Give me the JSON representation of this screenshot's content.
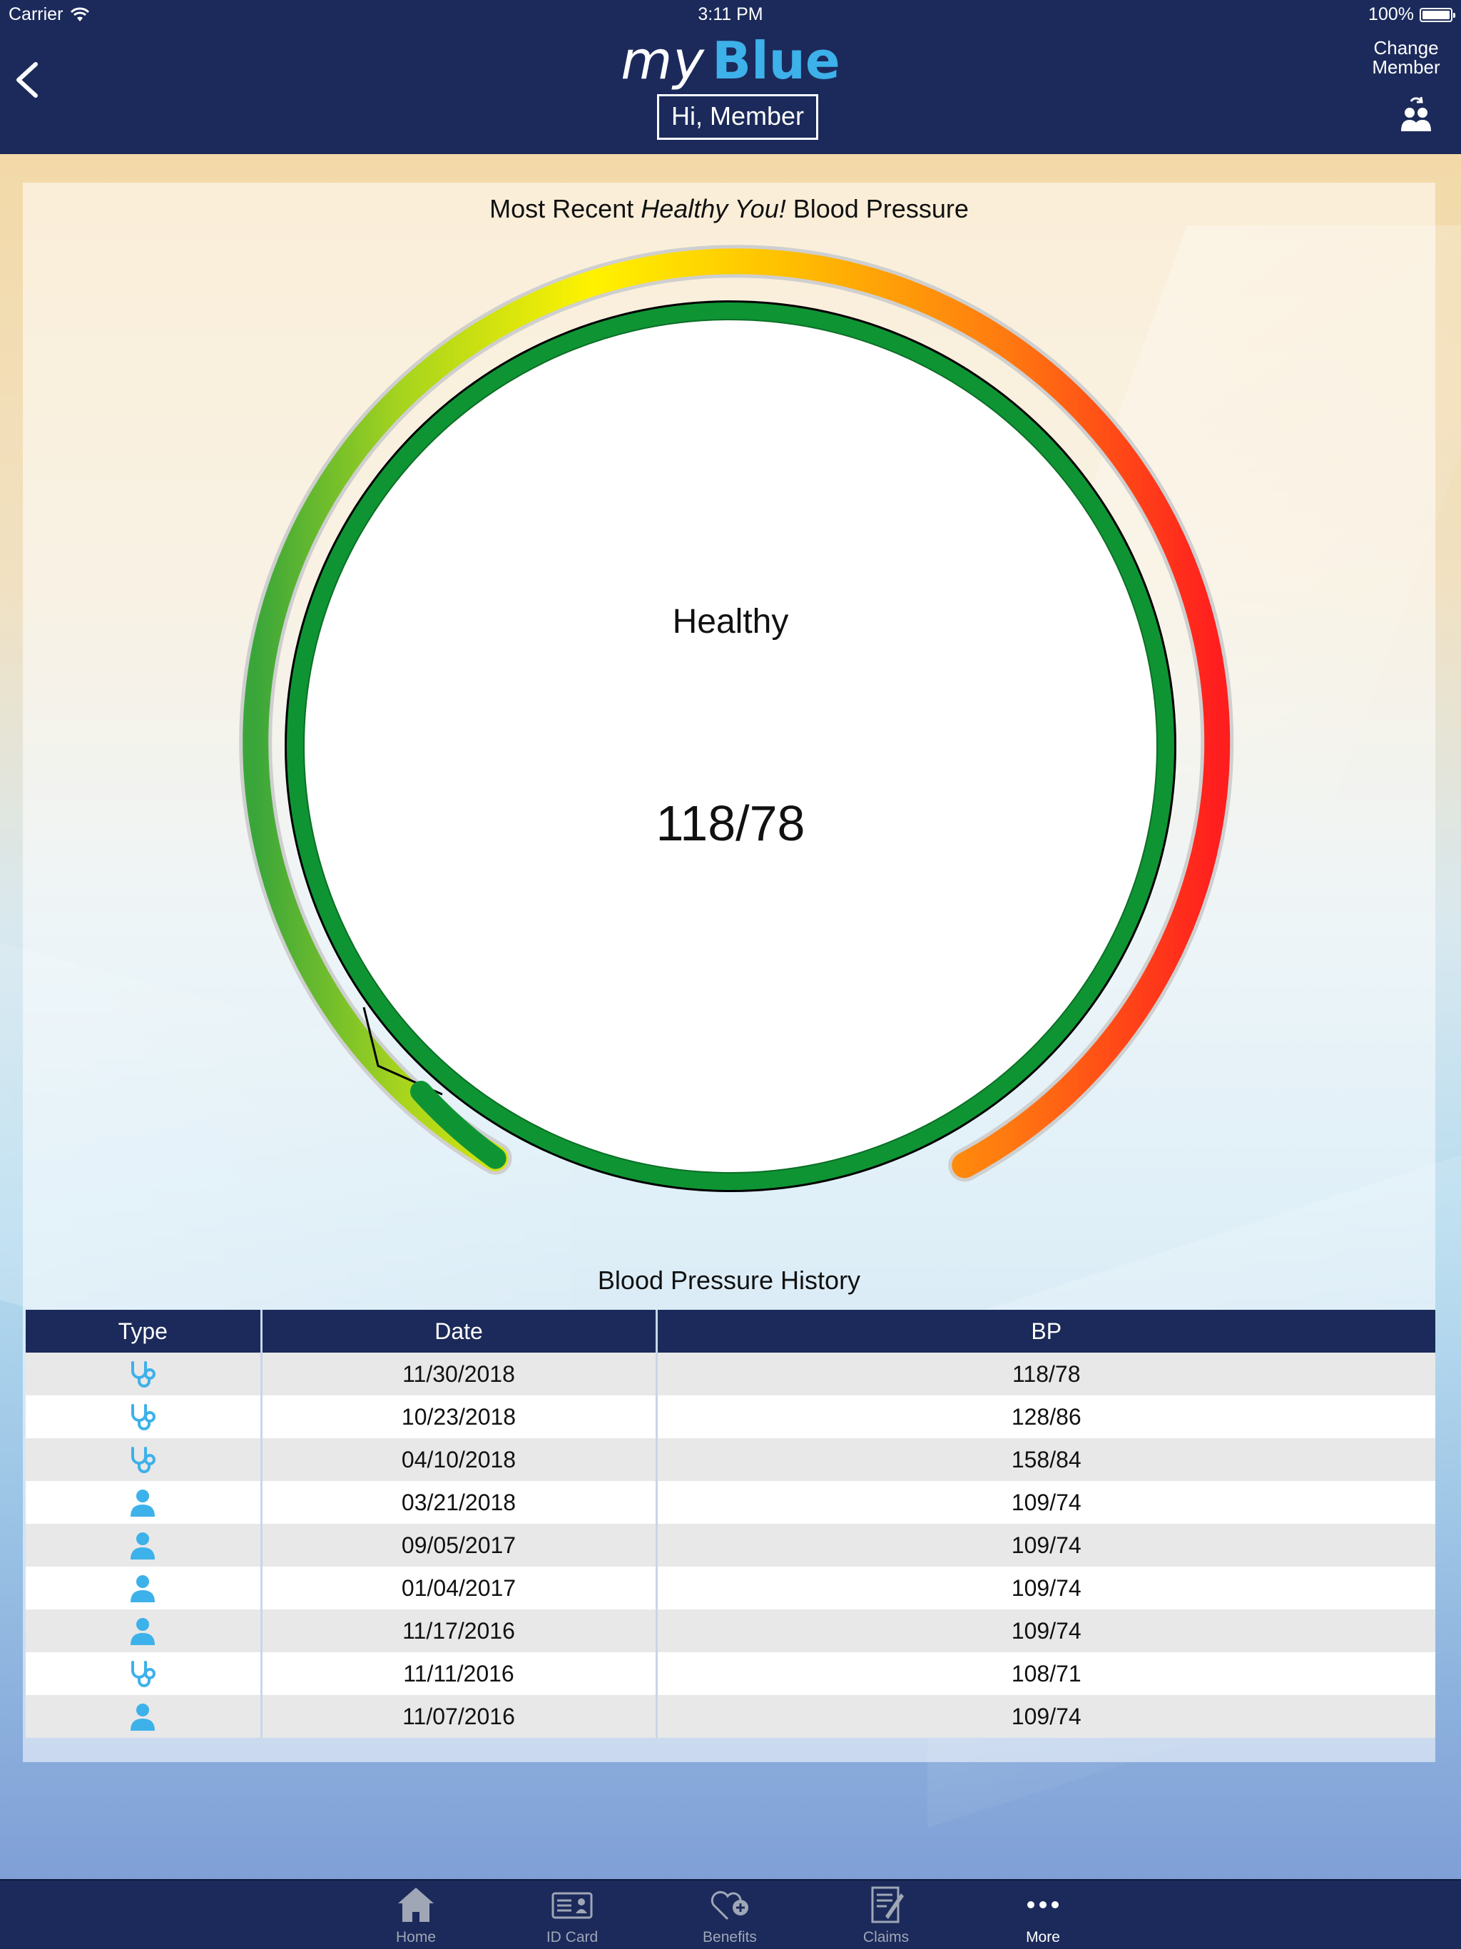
{
  "status_bar": {
    "carrier": "Carrier",
    "time": "3:11 PM",
    "battery": "100%"
  },
  "header": {
    "brand_my": "my",
    "brand_blue": "Blue",
    "greeting": "Hi, Member",
    "change_member_line1": "Change",
    "change_member_line2": "Member"
  },
  "card": {
    "title_prefix": "Most Recent ",
    "title_italic": "Healthy You!",
    "title_suffix": " Blood Pressure"
  },
  "gauge": {
    "status": "Healthy",
    "value": "118/78",
    "ring_color": "#0f9434",
    "gradient_colors": [
      "#3aa63a",
      "#c8e21a",
      "#fff200",
      "#ffc000",
      "#ff7a10",
      "#ff1e1e"
    ]
  },
  "history": {
    "title": "Blood Pressure History",
    "columns": [
      "Type",
      "Date",
      "BP"
    ],
    "rows": [
      {
        "type": "stethoscope-icon",
        "date": "11/30/2018",
        "bp": "118/78"
      },
      {
        "type": "stethoscope-icon",
        "date": "10/23/2018",
        "bp": "128/86"
      },
      {
        "type": "stethoscope-icon",
        "date": "04/10/2018",
        "bp": "158/84"
      },
      {
        "type": "person-icon",
        "date": "03/21/2018",
        "bp": "109/74"
      },
      {
        "type": "person-icon",
        "date": "09/05/2017",
        "bp": "109/74"
      },
      {
        "type": "person-icon",
        "date": "01/04/2017",
        "bp": "109/74"
      },
      {
        "type": "person-icon",
        "date": "11/17/2016",
        "bp": "109/74"
      },
      {
        "type": "stethoscope-icon",
        "date": "11/11/2016",
        "bp": "108/71"
      },
      {
        "type": "person-icon",
        "date": "11/07/2016",
        "bp": "109/74"
      }
    ],
    "icon_color": "#3db1ea"
  },
  "tabs": [
    {
      "label": "Home",
      "icon": "home-icon",
      "active": false
    },
    {
      "label": "ID Card",
      "icon": "id-card-icon",
      "active": false
    },
    {
      "label": "Benefits",
      "icon": "heart-plus-icon",
      "active": false
    },
    {
      "label": "Claims",
      "icon": "claims-icon",
      "active": false
    },
    {
      "label": "More",
      "icon": "more-dots-icon",
      "active": true
    }
  ]
}
